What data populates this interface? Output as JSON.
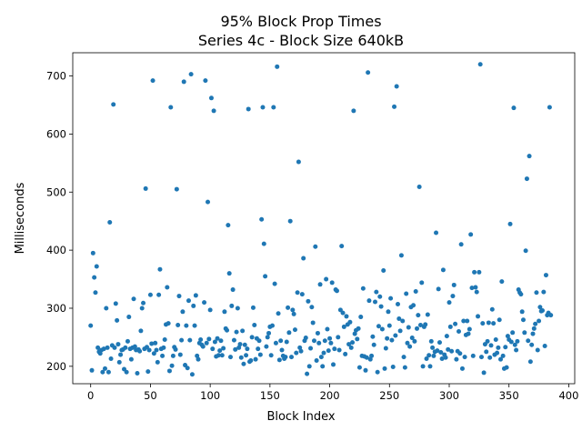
{
  "chart_data": {
    "type": "scatter",
    "title_line1": "95% Block Prop Times",
    "title_line2": "Series 4c - Block Size 640kB",
    "xlabel": "Block Index",
    "ylabel": "Milliseconds",
    "xlim": [
      -15,
      405
    ],
    "ylim": [
      170,
      740
    ],
    "xticks": [
      0,
      50,
      100,
      150,
      200,
      250,
      300,
      350,
      400
    ],
    "yticks": [
      200,
      300,
      400,
      500,
      600,
      700
    ],
    "grid": false,
    "legend": "none",
    "marker_color": "#1f77b4",
    "points": [
      [
        0,
        270
      ],
      [
        1,
        193
      ],
      [
        2,
        395
      ],
      [
        3,
        353
      ],
      [
        4,
        327
      ],
      [
        5,
        372
      ],
      [
        6,
        232
      ],
      [
        7,
        225
      ],
      [
        8,
        222
      ],
      [
        9,
        228
      ],
      [
        10,
        190
      ],
      [
        11,
        230
      ],
      [
        12,
        196
      ],
      [
        13,
        300
      ],
      [
        14,
        232
      ],
      [
        15,
        190
      ],
      [
        16,
        448
      ],
      [
        17,
        213
      ],
      [
        18,
        236
      ],
      [
        19,
        651
      ],
      [
        20,
        232
      ],
      [
        21,
        308
      ],
      [
        22,
        279
      ],
      [
        23,
        238
      ],
      [
        24,
        207
      ],
      [
        25,
        220
      ],
      [
        26,
        228
      ],
      [
        27,
        229
      ],
      [
        28,
        195
      ],
      [
        29,
        232
      ],
      [
        30,
        190
      ],
      [
        31,
        243
      ],
      [
        32,
        285
      ],
      [
        33,
        230
      ],
      [
        34,
        212
      ],
      [
        35,
        232
      ],
      [
        36,
        316
      ],
      [
        37,
        234
      ],
      [
        38,
        228
      ],
      [
        39,
        188
      ],
      [
        40,
        229
      ],
      [
        41,
        226
      ],
      [
        42,
        261
      ],
      [
        43,
        300
      ],
      [
        44,
        309
      ],
      [
        45,
        230
      ],
      [
        46,
        506
      ],
      [
        47,
        233
      ],
      [
        48,
        191
      ],
      [
        49,
        228
      ],
      [
        50,
        323
      ],
      [
        51,
        239
      ],
      [
        52,
        692
      ],
      [
        53,
        222
      ],
      [
        54,
        240
      ],
      [
        55,
        228
      ],
      [
        56,
        207
      ],
      [
        57,
        323
      ],
      [
        58,
        367
      ],
      [
        59,
        230
      ],
      [
        60,
        218
      ],
      [
        61,
        232
      ],
      [
        62,
        246
      ],
      [
        63,
        272
      ],
      [
        64,
        336
      ],
      [
        65,
        274
      ],
      [
        66,
        192
      ],
      [
        67,
        646
      ],
      [
        68,
        201
      ],
      [
        69,
        218
      ],
      [
        70,
        233
      ],
      [
        71,
        229
      ],
      [
        72,
        505
      ],
      [
        73,
        271
      ],
      [
        74,
        321
      ],
      [
        75,
        220
      ],
      [
        76,
        245
      ],
      [
        77,
        294
      ],
      [
        78,
        690
      ],
      [
        79,
        202
      ],
      [
        80,
        270
      ],
      [
        81,
        197
      ],
      [
        82,
        313
      ],
      [
        83,
        245
      ],
      [
        84,
        703
      ],
      [
        85,
        186
      ],
      [
        86,
        304
      ],
      [
        87,
        270
      ],
      [
        88,
        322
      ],
      [
        89,
        218
      ],
      [
        90,
        212
      ],
      [
        91,
        240
      ],
      [
        92,
        246
      ],
      [
        93,
        237
      ],
      [
        94,
        234
      ],
      [
        95,
        310
      ],
      [
        96,
        692
      ],
      [
        97,
        240
      ],
      [
        98,
        483
      ],
      [
        99,
        247
      ],
      [
        100,
        297
      ],
      [
        101,
        662
      ],
      [
        102,
        230
      ],
      [
        103,
        640
      ],
      [
        104,
        242
      ],
      [
        105,
        217
      ],
      [
        106,
        248
      ],
      [
        107,
        219
      ],
      [
        108,
        227
      ],
      [
        109,
        244
      ],
      [
        110,
        219
      ],
      [
        111,
        231
      ],
      [
        112,
        294
      ],
      [
        113,
        265
      ],
      [
        114,
        262
      ],
      [
        115,
        443
      ],
      [
        116,
        360
      ],
      [
        117,
        216
      ],
      [
        118,
        304
      ],
      [
        119,
        332
      ],
      [
        120,
        245
      ],
      [
        121,
        229
      ],
      [
        122,
        259
      ],
      [
        123,
        300
      ],
      [
        124,
        232
      ],
      [
        125,
        238
      ],
      [
        126,
        215
      ],
      [
        127,
        261
      ],
      [
        128,
        204
      ],
      [
        129,
        237
      ],
      [
        130,
        219
      ],
      [
        131,
        230
      ],
      [
        132,
        643
      ],
      [
        133,
        208
      ],
      [
        134,
        210
      ],
      [
        135,
        250
      ],
      [
        136,
        301
      ],
      [
        137,
        271
      ],
      [
        138,
        212
      ],
      [
        139,
        248
      ],
      [
        140,
        230
      ],
      [
        141,
        244
      ],
      [
        142,
        220
      ],
      [
        143,
        453
      ],
      [
        144,
        646
      ],
      [
        145,
        411
      ],
      [
        146,
        355
      ],
      [
        147,
        234
      ],
      [
        148,
        250
      ],
      [
        149,
        257
      ],
      [
        150,
        268
      ],
      [
        151,
        219
      ],
      [
        152,
        270
      ],
      [
        153,
        646
      ],
      [
        154,
        342
      ],
      [
        155,
        240
      ],
      [
        156,
        716
      ],
      [
        157,
        291
      ],
      [
        158,
        211
      ],
      [
        159,
        244
      ],
      [
        160,
        228
      ],
      [
        161,
        218
      ],
      [
        162,
        213
      ],
      [
        163,
        216
      ],
      [
        164,
        242
      ],
      [
        165,
        301
      ],
      [
        166,
        258
      ],
      [
        167,
        450
      ],
      [
        168,
        216
      ],
      [
        169,
        297
      ],
      [
        170,
        290
      ],
      [
        171,
        263
      ],
      [
        172,
        223
      ],
      [
        173,
        327
      ],
      [
        174,
        552
      ],
      [
        175,
        232
      ],
      [
        176,
        226
      ],
      [
        177,
        324
      ],
      [
        178,
        386
      ],
      [
        179,
        244
      ],
      [
        180,
        249
      ],
      [
        181,
        187
      ],
      [
        182,
        312
      ],
      [
        183,
        200
      ],
      [
        184,
        231
      ],
      [
        185,
        302
      ],
      [
        186,
        275
      ],
      [
        187,
        244
      ],
      [
        188,
        406
      ],
      [
        189,
        210
      ],
      [
        190,
        257
      ],
      [
        191,
        240
      ],
      [
        192,
        341
      ],
      [
        193,
        216
      ],
      [
        194,
        200
      ],
      [
        195,
        223
      ],
      [
        196,
        244
      ],
      [
        197,
        350
      ],
      [
        198,
        264
      ],
      [
        199,
        227
      ],
      [
        200,
        248
      ],
      [
        201,
        240
      ],
      [
        202,
        344
      ],
      [
        203,
        203
      ],
      [
        204,
        230
      ],
      [
        205,
        332
      ],
      [
        206,
        330
      ],
      [
        207,
        250
      ],
      [
        208,
        228
      ],
      [
        209,
        297
      ],
      [
        210,
        407
      ],
      [
        211,
        292
      ],
      [
        212,
        268
      ],
      [
        213,
        221
      ],
      [
        214,
        286
      ],
      [
        215,
        272
      ],
      [
        216,
        238
      ],
      [
        217,
        276
      ],
      [
        218,
        232
      ],
      [
        219,
        241
      ],
      [
        220,
        640
      ],
      [
        221,
        256
      ],
      [
        222,
        262
      ],
      [
        223,
        247
      ],
      [
        224,
        265
      ],
      [
        225,
        198
      ],
      [
        226,
        285
      ],
      [
        227,
        218
      ],
      [
        228,
        334
      ],
      [
        229,
        217
      ],
      [
        230,
        193
      ],
      [
        231,
        215
      ],
      [
        232,
        706
      ],
      [
        233,
        313
      ],
      [
        234,
        212
      ],
      [
        235,
        218
      ],
      [
        236,
        251
      ],
      [
        237,
        237
      ],
      [
        238,
        311
      ],
      [
        239,
        328
      ],
      [
        240,
        190
      ],
      [
        241,
        269
      ],
      [
        242,
        320
      ],
      [
        243,
        303
      ],
      [
        244,
        264
      ],
      [
        245,
        365
      ],
      [
        246,
        196
      ],
      [
        247,
        231
      ],
      [
        248,
        248
      ],
      [
        249,
        294
      ],
      [
        250,
        270
      ],
      [
        251,
        317
      ],
      [
        252,
        245
      ],
      [
        253,
        199
      ],
      [
        254,
        647
      ],
      [
        255,
        253
      ],
      [
        256,
        682
      ],
      [
        257,
        307
      ],
      [
        258,
        282
      ],
      [
        259,
        261
      ],
      [
        260,
        391
      ],
      [
        261,
        278
      ],
      [
        262,
        216
      ],
      [
        263,
        198
      ],
      [
        264,
        325
      ],
      [
        265,
        240
      ],
      [
        266,
        267
      ],
      [
        267,
        234
      ],
      [
        268,
        302
      ],
      [
        269,
        249
      ],
      [
        270,
        305
      ],
      [
        271,
        243
      ],
      [
        272,
        329
      ],
      [
        273,
        265
      ],
      [
        274,
        288
      ],
      [
        275,
        509
      ],
      [
        276,
        271
      ],
      [
        277,
        344
      ],
      [
        278,
        200
      ],
      [
        279,
        268
      ],
      [
        280,
        272
      ],
      [
        281,
        213
      ],
      [
        282,
        289
      ],
      [
        283,
        219
      ],
      [
        284,
        200
      ],
      [
        285,
        243
      ],
      [
        286,
        232
      ],
      [
        287,
        218
      ],
      [
        288,
        225
      ],
      [
        289,
        430
      ],
      [
        290,
        227
      ],
      [
        291,
        333
      ],
      [
        292,
        241
      ],
      [
        293,
        224
      ],
      [
        294,
        213
      ],
      [
        295,
        366
      ],
      [
        296,
        220
      ],
      [
        297,
        215
      ],
      [
        298,
        252
      ],
      [
        299,
        229
      ],
      [
        300,
        310
      ],
      [
        301,
        268
      ],
      [
        302,
        226
      ],
      [
        303,
        321
      ],
      [
        304,
        340
      ],
      [
        305,
        273
      ],
      [
        306,
        212
      ],
      [
        307,
        226
      ],
      [
        308,
        260
      ],
      [
        309,
        222
      ],
      [
        310,
        410
      ],
      [
        311,
        196
      ],
      [
        312,
        278
      ],
      [
        313,
        216
      ],
      [
        314,
        254
      ],
      [
        315,
        278
      ],
      [
        316,
        256
      ],
      [
        317,
        264
      ],
      [
        318,
        427
      ],
      [
        319,
        335
      ],
      [
        320,
        218
      ],
      [
        321,
        362
      ],
      [
        322,
        336
      ],
      [
        323,
        328
      ],
      [
        324,
        286
      ],
      [
        325,
        362
      ],
      [
        326,
        720
      ],
      [
        327,
        216
      ],
      [
        328,
        274
      ],
      [
        329,
        189
      ],
      [
        330,
        238
      ],
      [
        331,
        225
      ],
      [
        332,
        243
      ],
      [
        333,
        275
      ],
      [
        334,
        215
      ],
      [
        335,
        236
      ],
      [
        336,
        298
      ],
      [
        337,
        274
      ],
      [
        338,
        220
      ],
      [
        339,
        246
      ],
      [
        340,
        223
      ],
      [
        341,
        232
      ],
      [
        342,
        280
      ],
      [
        343,
        212
      ],
      [
        344,
        346
      ],
      [
        345,
        218
      ],
      [
        346,
        196
      ],
      [
        347,
        233
      ],
      [
        348,
        198
      ],
      [
        349,
        252
      ],
      [
        350,
        246
      ],
      [
        351,
        445
      ],
      [
        352,
        242
      ],
      [
        353,
        258
      ],
      [
        354,
        645
      ],
      [
        355,
        237
      ],
      [
        356,
        228
      ],
      [
        357,
        243
      ],
      [
        358,
        332
      ],
      [
        359,
        327
      ],
      [
        360,
        324
      ],
      [
        361,
        294
      ],
      [
        362,
        280
      ],
      [
        363,
        258
      ],
      [
        364,
        399
      ],
      [
        365,
        523
      ],
      [
        366,
        244
      ],
      [
        367,
        562
      ],
      [
        368,
        208
      ],
      [
        369,
        237
      ],
      [
        370,
        256
      ],
      [
        371,
        265
      ],
      [
        372,
        273
      ],
      [
        373,
        327
      ],
      [
        374,
        228
      ],
      [
        375,
        278
      ],
      [
        376,
        302
      ],
      [
        377,
        295
      ],
      [
        378,
        296
      ],
      [
        379,
        328
      ],
      [
        380,
        235
      ],
      [
        381,
        357
      ],
      [
        382,
        288
      ],
      [
        383,
        292
      ],
      [
        384,
        646
      ],
      [
        385,
        288
      ]
    ]
  }
}
